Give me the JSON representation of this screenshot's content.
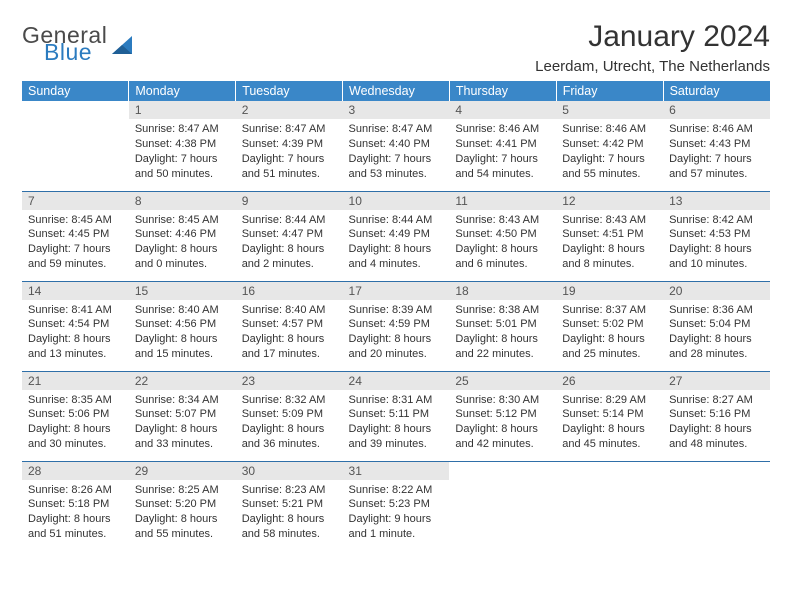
{
  "brand": {
    "line1": "General",
    "line2": "Blue",
    "shape_color": "#2b7bbf"
  },
  "title": "January 2024",
  "location": "Leerdam, Utrecht, The Netherlands",
  "colors": {
    "header_bg": "#3a87c8",
    "row_border": "#2f6fa8",
    "daynum_bg": "#e7e7e7"
  },
  "weekdays": [
    "Sunday",
    "Monday",
    "Tuesday",
    "Wednesday",
    "Thursday",
    "Friday",
    "Saturday"
  ],
  "weeks": [
    [
      {
        "empty": true
      },
      {
        "n": "1",
        "sr": "8:47 AM",
        "ss": "4:38 PM",
        "dl1": "Daylight: 7 hours",
        "dl2": "and 50 minutes."
      },
      {
        "n": "2",
        "sr": "8:47 AM",
        "ss": "4:39 PM",
        "dl1": "Daylight: 7 hours",
        "dl2": "and 51 minutes."
      },
      {
        "n": "3",
        "sr": "8:47 AM",
        "ss": "4:40 PM",
        "dl1": "Daylight: 7 hours",
        "dl2": "and 53 minutes."
      },
      {
        "n": "4",
        "sr": "8:46 AM",
        "ss": "4:41 PM",
        "dl1": "Daylight: 7 hours",
        "dl2": "and 54 minutes."
      },
      {
        "n": "5",
        "sr": "8:46 AM",
        "ss": "4:42 PM",
        "dl1": "Daylight: 7 hours",
        "dl2": "and 55 minutes."
      },
      {
        "n": "6",
        "sr": "8:46 AM",
        "ss": "4:43 PM",
        "dl1": "Daylight: 7 hours",
        "dl2": "and 57 minutes."
      }
    ],
    [
      {
        "n": "7",
        "sr": "8:45 AM",
        "ss": "4:45 PM",
        "dl1": "Daylight: 7 hours",
        "dl2": "and 59 minutes."
      },
      {
        "n": "8",
        "sr": "8:45 AM",
        "ss": "4:46 PM",
        "dl1": "Daylight: 8 hours",
        "dl2": "and 0 minutes."
      },
      {
        "n": "9",
        "sr": "8:44 AM",
        "ss": "4:47 PM",
        "dl1": "Daylight: 8 hours",
        "dl2": "and 2 minutes."
      },
      {
        "n": "10",
        "sr": "8:44 AM",
        "ss": "4:49 PM",
        "dl1": "Daylight: 8 hours",
        "dl2": "and 4 minutes."
      },
      {
        "n": "11",
        "sr": "8:43 AM",
        "ss": "4:50 PM",
        "dl1": "Daylight: 8 hours",
        "dl2": "and 6 minutes."
      },
      {
        "n": "12",
        "sr": "8:43 AM",
        "ss": "4:51 PM",
        "dl1": "Daylight: 8 hours",
        "dl2": "and 8 minutes."
      },
      {
        "n": "13",
        "sr": "8:42 AM",
        "ss": "4:53 PM",
        "dl1": "Daylight: 8 hours",
        "dl2": "and 10 minutes."
      }
    ],
    [
      {
        "n": "14",
        "sr": "8:41 AM",
        "ss": "4:54 PM",
        "dl1": "Daylight: 8 hours",
        "dl2": "and 13 minutes."
      },
      {
        "n": "15",
        "sr": "8:40 AM",
        "ss": "4:56 PM",
        "dl1": "Daylight: 8 hours",
        "dl2": "and 15 minutes."
      },
      {
        "n": "16",
        "sr": "8:40 AM",
        "ss": "4:57 PM",
        "dl1": "Daylight: 8 hours",
        "dl2": "and 17 minutes."
      },
      {
        "n": "17",
        "sr": "8:39 AM",
        "ss": "4:59 PM",
        "dl1": "Daylight: 8 hours",
        "dl2": "and 20 minutes."
      },
      {
        "n": "18",
        "sr": "8:38 AM",
        "ss": "5:01 PM",
        "dl1": "Daylight: 8 hours",
        "dl2": "and 22 minutes."
      },
      {
        "n": "19",
        "sr": "8:37 AM",
        "ss": "5:02 PM",
        "dl1": "Daylight: 8 hours",
        "dl2": "and 25 minutes."
      },
      {
        "n": "20",
        "sr": "8:36 AM",
        "ss": "5:04 PM",
        "dl1": "Daylight: 8 hours",
        "dl2": "and 28 minutes."
      }
    ],
    [
      {
        "n": "21",
        "sr": "8:35 AM",
        "ss": "5:06 PM",
        "dl1": "Daylight: 8 hours",
        "dl2": "and 30 minutes."
      },
      {
        "n": "22",
        "sr": "8:34 AM",
        "ss": "5:07 PM",
        "dl1": "Daylight: 8 hours",
        "dl2": "and 33 minutes."
      },
      {
        "n": "23",
        "sr": "8:32 AM",
        "ss": "5:09 PM",
        "dl1": "Daylight: 8 hours",
        "dl2": "and 36 minutes."
      },
      {
        "n": "24",
        "sr": "8:31 AM",
        "ss": "5:11 PM",
        "dl1": "Daylight: 8 hours",
        "dl2": "and 39 minutes."
      },
      {
        "n": "25",
        "sr": "8:30 AM",
        "ss": "5:12 PM",
        "dl1": "Daylight: 8 hours",
        "dl2": "and 42 minutes."
      },
      {
        "n": "26",
        "sr": "8:29 AM",
        "ss": "5:14 PM",
        "dl1": "Daylight: 8 hours",
        "dl2": "and 45 minutes."
      },
      {
        "n": "27",
        "sr": "8:27 AM",
        "ss": "5:16 PM",
        "dl1": "Daylight: 8 hours",
        "dl2": "and 48 minutes."
      }
    ],
    [
      {
        "n": "28",
        "sr": "8:26 AM",
        "ss": "5:18 PM",
        "dl1": "Daylight: 8 hours",
        "dl2": "and 51 minutes."
      },
      {
        "n": "29",
        "sr": "8:25 AM",
        "ss": "5:20 PM",
        "dl1": "Daylight: 8 hours",
        "dl2": "and 55 minutes."
      },
      {
        "n": "30",
        "sr": "8:23 AM",
        "ss": "5:21 PM",
        "dl1": "Daylight: 8 hours",
        "dl2": "and 58 minutes."
      },
      {
        "n": "31",
        "sr": "8:22 AM",
        "ss": "5:23 PM",
        "dl1": "Daylight: 9 hours",
        "dl2": "and 1 minute."
      },
      {
        "empty": true
      },
      {
        "empty": true
      },
      {
        "empty": true
      }
    ]
  ]
}
